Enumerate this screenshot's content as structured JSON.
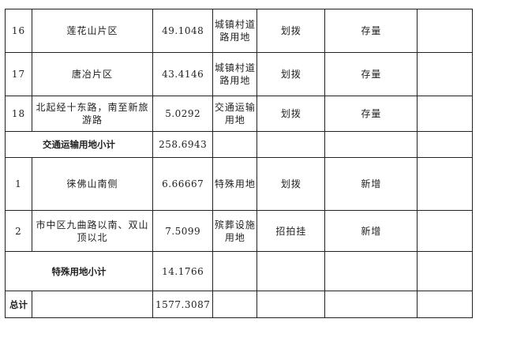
{
  "rows": [
    {
      "no": "16",
      "location": "莲花山片区",
      "area": "49.1048",
      "use": "城镇村道路用地",
      "method": "划拨",
      "status": "存量",
      "note": ""
    },
    {
      "no": "17",
      "location": "唐冶片区",
      "area": "43.4146",
      "use": "城镇村道路用地",
      "method": "划拨",
      "status": "存量",
      "note": ""
    },
    {
      "no": "18",
      "location": "北起经十东路，南至新旅游路",
      "area": "5.0292",
      "use": "交通运输用地",
      "method": "划拨",
      "status": "存量",
      "note": ""
    }
  ],
  "subtotal_transport": {
    "label": "交通运输用地小计",
    "area": "258.6943"
  },
  "rows2": [
    {
      "no": "1",
      "location": "徕佛山南侧",
      "area": "6.66667",
      "use": "特殊用地",
      "method": "划拨",
      "status": "新增",
      "note": ""
    },
    {
      "no": "2",
      "location": "市中区九曲路以南、双山顶以北",
      "area": "7.5099",
      "use": "殡葬设施用地",
      "method": "招拍挂",
      "status": "新增",
      "note": ""
    }
  ],
  "subtotal_special": {
    "label": "特殊用地小计",
    "area": "14.1766"
  },
  "total": {
    "label": "总计",
    "area": "1577.3087"
  }
}
